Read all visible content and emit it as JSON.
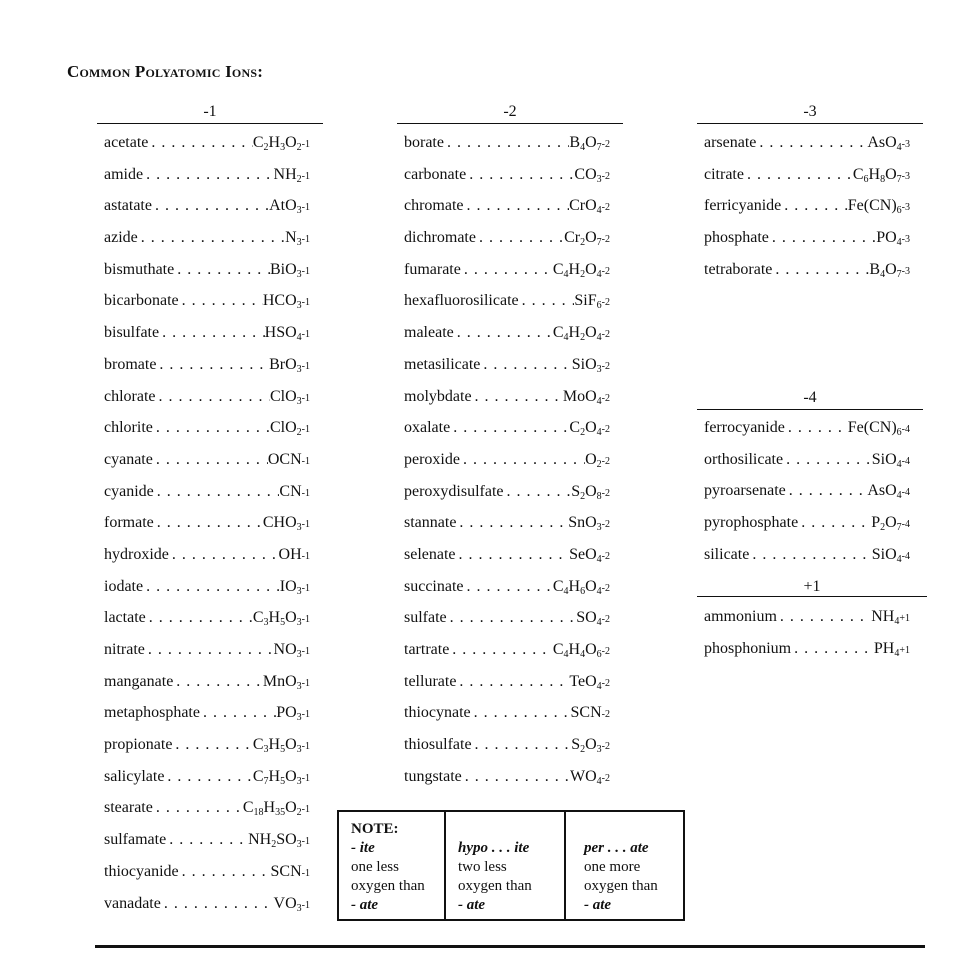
{
  "title": "Common Polyatomic Ions:",
  "groups": {
    "m1": {
      "header": "-1",
      "ions": [
        {
          "name": "acetate",
          "formula": "C2H3O2",
          "charge": "-1"
        },
        {
          "name": "amide",
          "formula": "NH2",
          "charge": "-1"
        },
        {
          "name": "astatate",
          "formula": "AtO3",
          "charge": "-1"
        },
        {
          "name": "azide",
          "formula": "N3",
          "charge": "-1"
        },
        {
          "name": "bismuthate",
          "formula": "BiO3",
          "charge": "-1"
        },
        {
          "name": "bicarbonate",
          "formula": "HCO3",
          "charge": "-1"
        },
        {
          "name": "bisulfate",
          "formula": "HSO4",
          "charge": "-1"
        },
        {
          "name": "bromate",
          "formula": "BrO3",
          "charge": "-1"
        },
        {
          "name": "chlorate",
          "formula": "ClO3",
          "charge": "-1"
        },
        {
          "name": "chlorite",
          "formula": "ClO2",
          "charge": "-1"
        },
        {
          "name": "cyanate",
          "formula": "OCN",
          "charge": "-1"
        },
        {
          "name": "cyanide",
          "formula": "CN",
          "charge": "-1"
        },
        {
          "name": "formate",
          "formula": "CHO3",
          "charge": "-1"
        },
        {
          "name": "hydroxide",
          "formula": "OH",
          "charge": "-1"
        },
        {
          "name": "iodate",
          "formula": "IO3",
          "charge": "-1"
        },
        {
          "name": "lactate",
          "formula": "C3H5O3",
          "charge": "-1"
        },
        {
          "name": "nitrate",
          "formula": "NO3",
          "charge": "-1"
        },
        {
          "name": "manganate",
          "formula": "MnO3",
          "charge": "-1"
        },
        {
          "name": "metaphosphate",
          "formula": "PO3",
          "charge": "-1"
        },
        {
          "name": "propionate",
          "formula": "C3H5O3",
          "charge": "-1"
        },
        {
          "name": "salicylate",
          "formula": "C7H5O3",
          "charge": "-1"
        },
        {
          "name": "stearate",
          "formula": "C18H35O2",
          "charge": "-1"
        },
        {
          "name": "sulfamate",
          "formula": "NH2SO3",
          "charge": "-1"
        },
        {
          "name": "thiocyanide",
          "formula": "SCN",
          "charge": "-1"
        },
        {
          "name": "vanadate",
          "formula": "VO3",
          "charge": "-1"
        }
      ]
    },
    "m2": {
      "header": "-2",
      "ions": [
        {
          "name": "borate",
          "formula": "B4O7",
          "charge": "-2"
        },
        {
          "name": "carbonate",
          "formula": "CO3",
          "charge": "-2"
        },
        {
          "name": "chromate",
          "formula": "CrO4",
          "charge": "-2"
        },
        {
          "name": "dichromate",
          "formula": "Cr2O7",
          "charge": "-2"
        },
        {
          "name": "fumarate",
          "formula": "C4H2O4",
          "charge": "-2"
        },
        {
          "name": "hexafluorosilicate",
          "formula": "SiF6",
          "charge": "-2"
        },
        {
          "name": "maleate",
          "formula": "C4H2O4",
          "charge": "-2"
        },
        {
          "name": "metasilicate",
          "formula": "SiO3",
          "charge": "-2"
        },
        {
          "name": "molybdate",
          "formula": "MoO4",
          "charge": "-2"
        },
        {
          "name": "oxalate",
          "formula": "C2O4",
          "charge": "-2"
        },
        {
          "name": "peroxide",
          "formula": "O2",
          "charge": "-2"
        },
        {
          "name": "peroxydisulfate",
          "formula": "S2O8",
          "charge": "-2"
        },
        {
          "name": "stannate",
          "formula": "SnO3",
          "charge": "-2"
        },
        {
          "name": "selenate",
          "formula": "SeO4",
          "charge": "-2"
        },
        {
          "name": "succinate",
          "formula": "C4H6O4",
          "charge": "-2"
        },
        {
          "name": "sulfate",
          "formula": "SO4",
          "charge": "-2"
        },
        {
          "name": "tartrate",
          "formula": "C4H4O6",
          "charge": "-2"
        },
        {
          "name": "tellurate",
          "formula": "TeO4",
          "charge": "-2"
        },
        {
          "name": "thiocynate",
          "formula": "SCN",
          "charge": "-2"
        },
        {
          "name": "thiosulfate",
          "formula": "S2O3",
          "charge": "-2"
        },
        {
          "name": "tungstate",
          "formula": "WO4",
          "charge": "-2"
        }
      ]
    },
    "m3": {
      "header": "-3",
      "ions": [
        {
          "name": "arsenate",
          "formula": "AsO4",
          "charge": "-3"
        },
        {
          "name": "citrate",
          "formula": "C6H8O7",
          "charge": "-3"
        },
        {
          "name": "ferricyanide",
          "formula": "Fe(CN)6",
          "charge": "-3"
        },
        {
          "name": "phosphate",
          "formula": "PO4",
          "charge": "-3"
        },
        {
          "name": "tetraborate",
          "formula": "B4O7",
          "charge": "-3"
        }
      ]
    },
    "m4": {
      "header": "-4",
      "ions": [
        {
          "name": "ferrocyanide",
          "formula": "Fe(CN)6",
          "charge": "-4"
        },
        {
          "name": "orthosilicate",
          "formula": "SiO4",
          "charge": "-4"
        },
        {
          "name": "pyroarsenate",
          "formula": "AsO4",
          "charge": "-4"
        },
        {
          "name": "pyrophosphate",
          "formula": "P2O7",
          "charge": "-4"
        },
        {
          "name": "silicate",
          "formula": "SiO4",
          "charge": "-4"
        }
      ]
    },
    "p1": {
      "header": "+1",
      "ions": [
        {
          "name": "ammonium",
          "formula": "NH4",
          "charge": "+1"
        },
        {
          "name": "phosphonium",
          "formula": "PH4",
          "charge": "+1"
        }
      ]
    }
  },
  "note": {
    "heading": "NOTE:",
    "cells": [
      {
        "prefix": "- ite",
        "lines": [
          "one less",
          "oxygen than"
        ],
        "suffix": "- ate"
      },
      {
        "prefix": "hypo . . .  ite",
        "lines": [
          "two less",
          "oxygen than"
        ],
        "suffix": "- ate"
      },
      {
        "prefix": "per . . .  ate",
        "lines": [
          "one more",
          "oxygen than"
        ],
        "suffix": "- ate"
      }
    ]
  }
}
